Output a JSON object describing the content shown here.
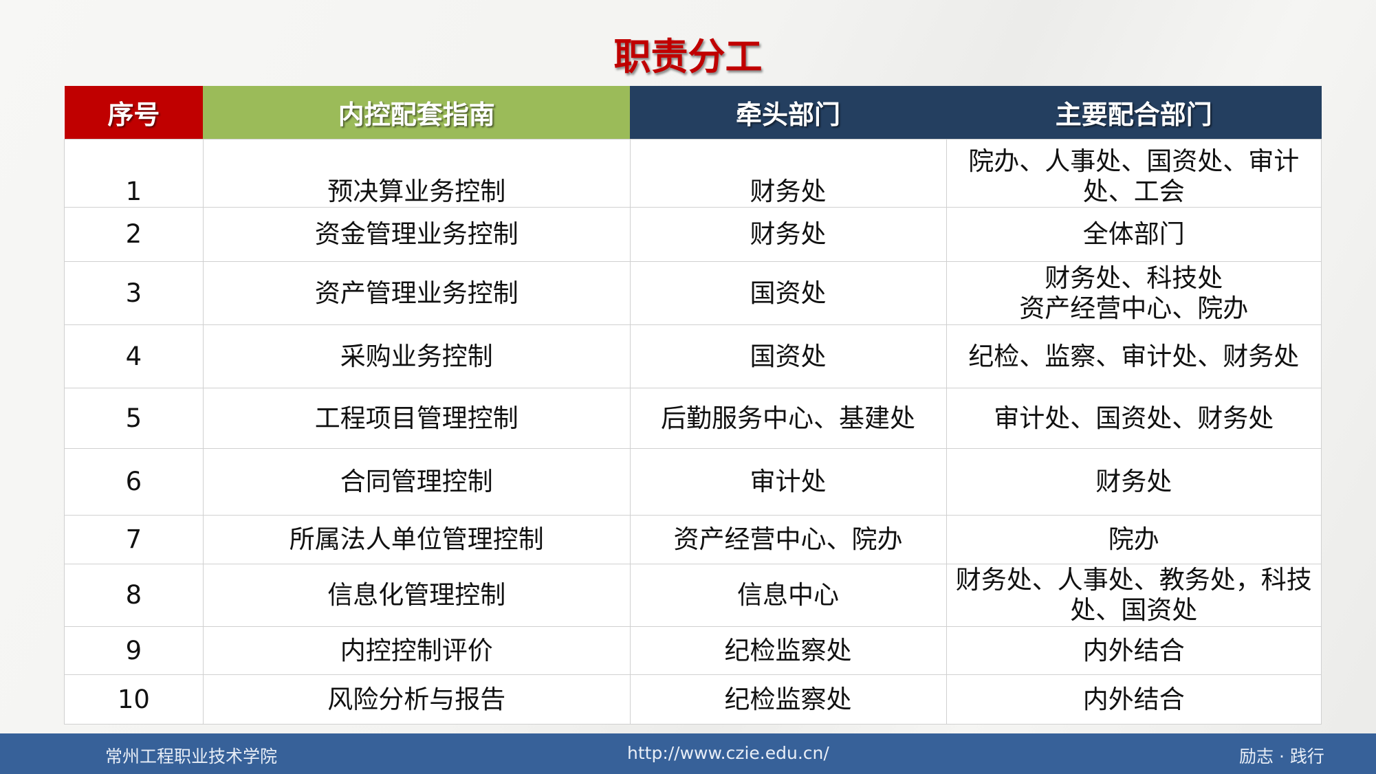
{
  "title": "职责分工",
  "table": {
    "headers": [
      "序号",
      "内控配套指南",
      "牵头部门",
      "主要配合部门"
    ],
    "header_colors": [
      "#c00000",
      "#9bbb59",
      "#243f60",
      "#243f60"
    ],
    "rows": [
      [
        "1",
        "预决算业务控制",
        "财务处",
        "院办、人事处、国资处、审计处、工会"
      ],
      [
        "2",
        "资金管理业务控制",
        "财务处",
        "全体部门"
      ],
      [
        "3",
        "资产管理业务控制",
        "国资处",
        "财务处、科技处\n资产经营中心、院办"
      ],
      [
        "4",
        "采购业务控制",
        "国资处",
        "纪检、监察、审计处、财务处"
      ],
      [
        "5",
        "工程项目管理控制",
        "后勤服务中心、基建处",
        "审计处、国资处、财务处"
      ],
      [
        "6",
        "合同管理控制",
        "审计处",
        "财务处"
      ],
      [
        "7",
        "所属法人单位管理控制",
        "资产经营中心、院办",
        "院办"
      ],
      [
        "8",
        "信息化管理控制",
        "信息中心",
        "财务处、人事处、教务处，科技处、国资处"
      ],
      [
        "9",
        "内控控制评价",
        "纪检监察处",
        "内外结合"
      ],
      [
        "10",
        "风险分析与报告",
        "纪检监察处",
        "内外结合"
      ]
    ]
  },
  "footer": {
    "school": "常州工程职业技术学院",
    "url": "http://www.czie.edu.cn/",
    "motto": "励志 · 践行"
  }
}
